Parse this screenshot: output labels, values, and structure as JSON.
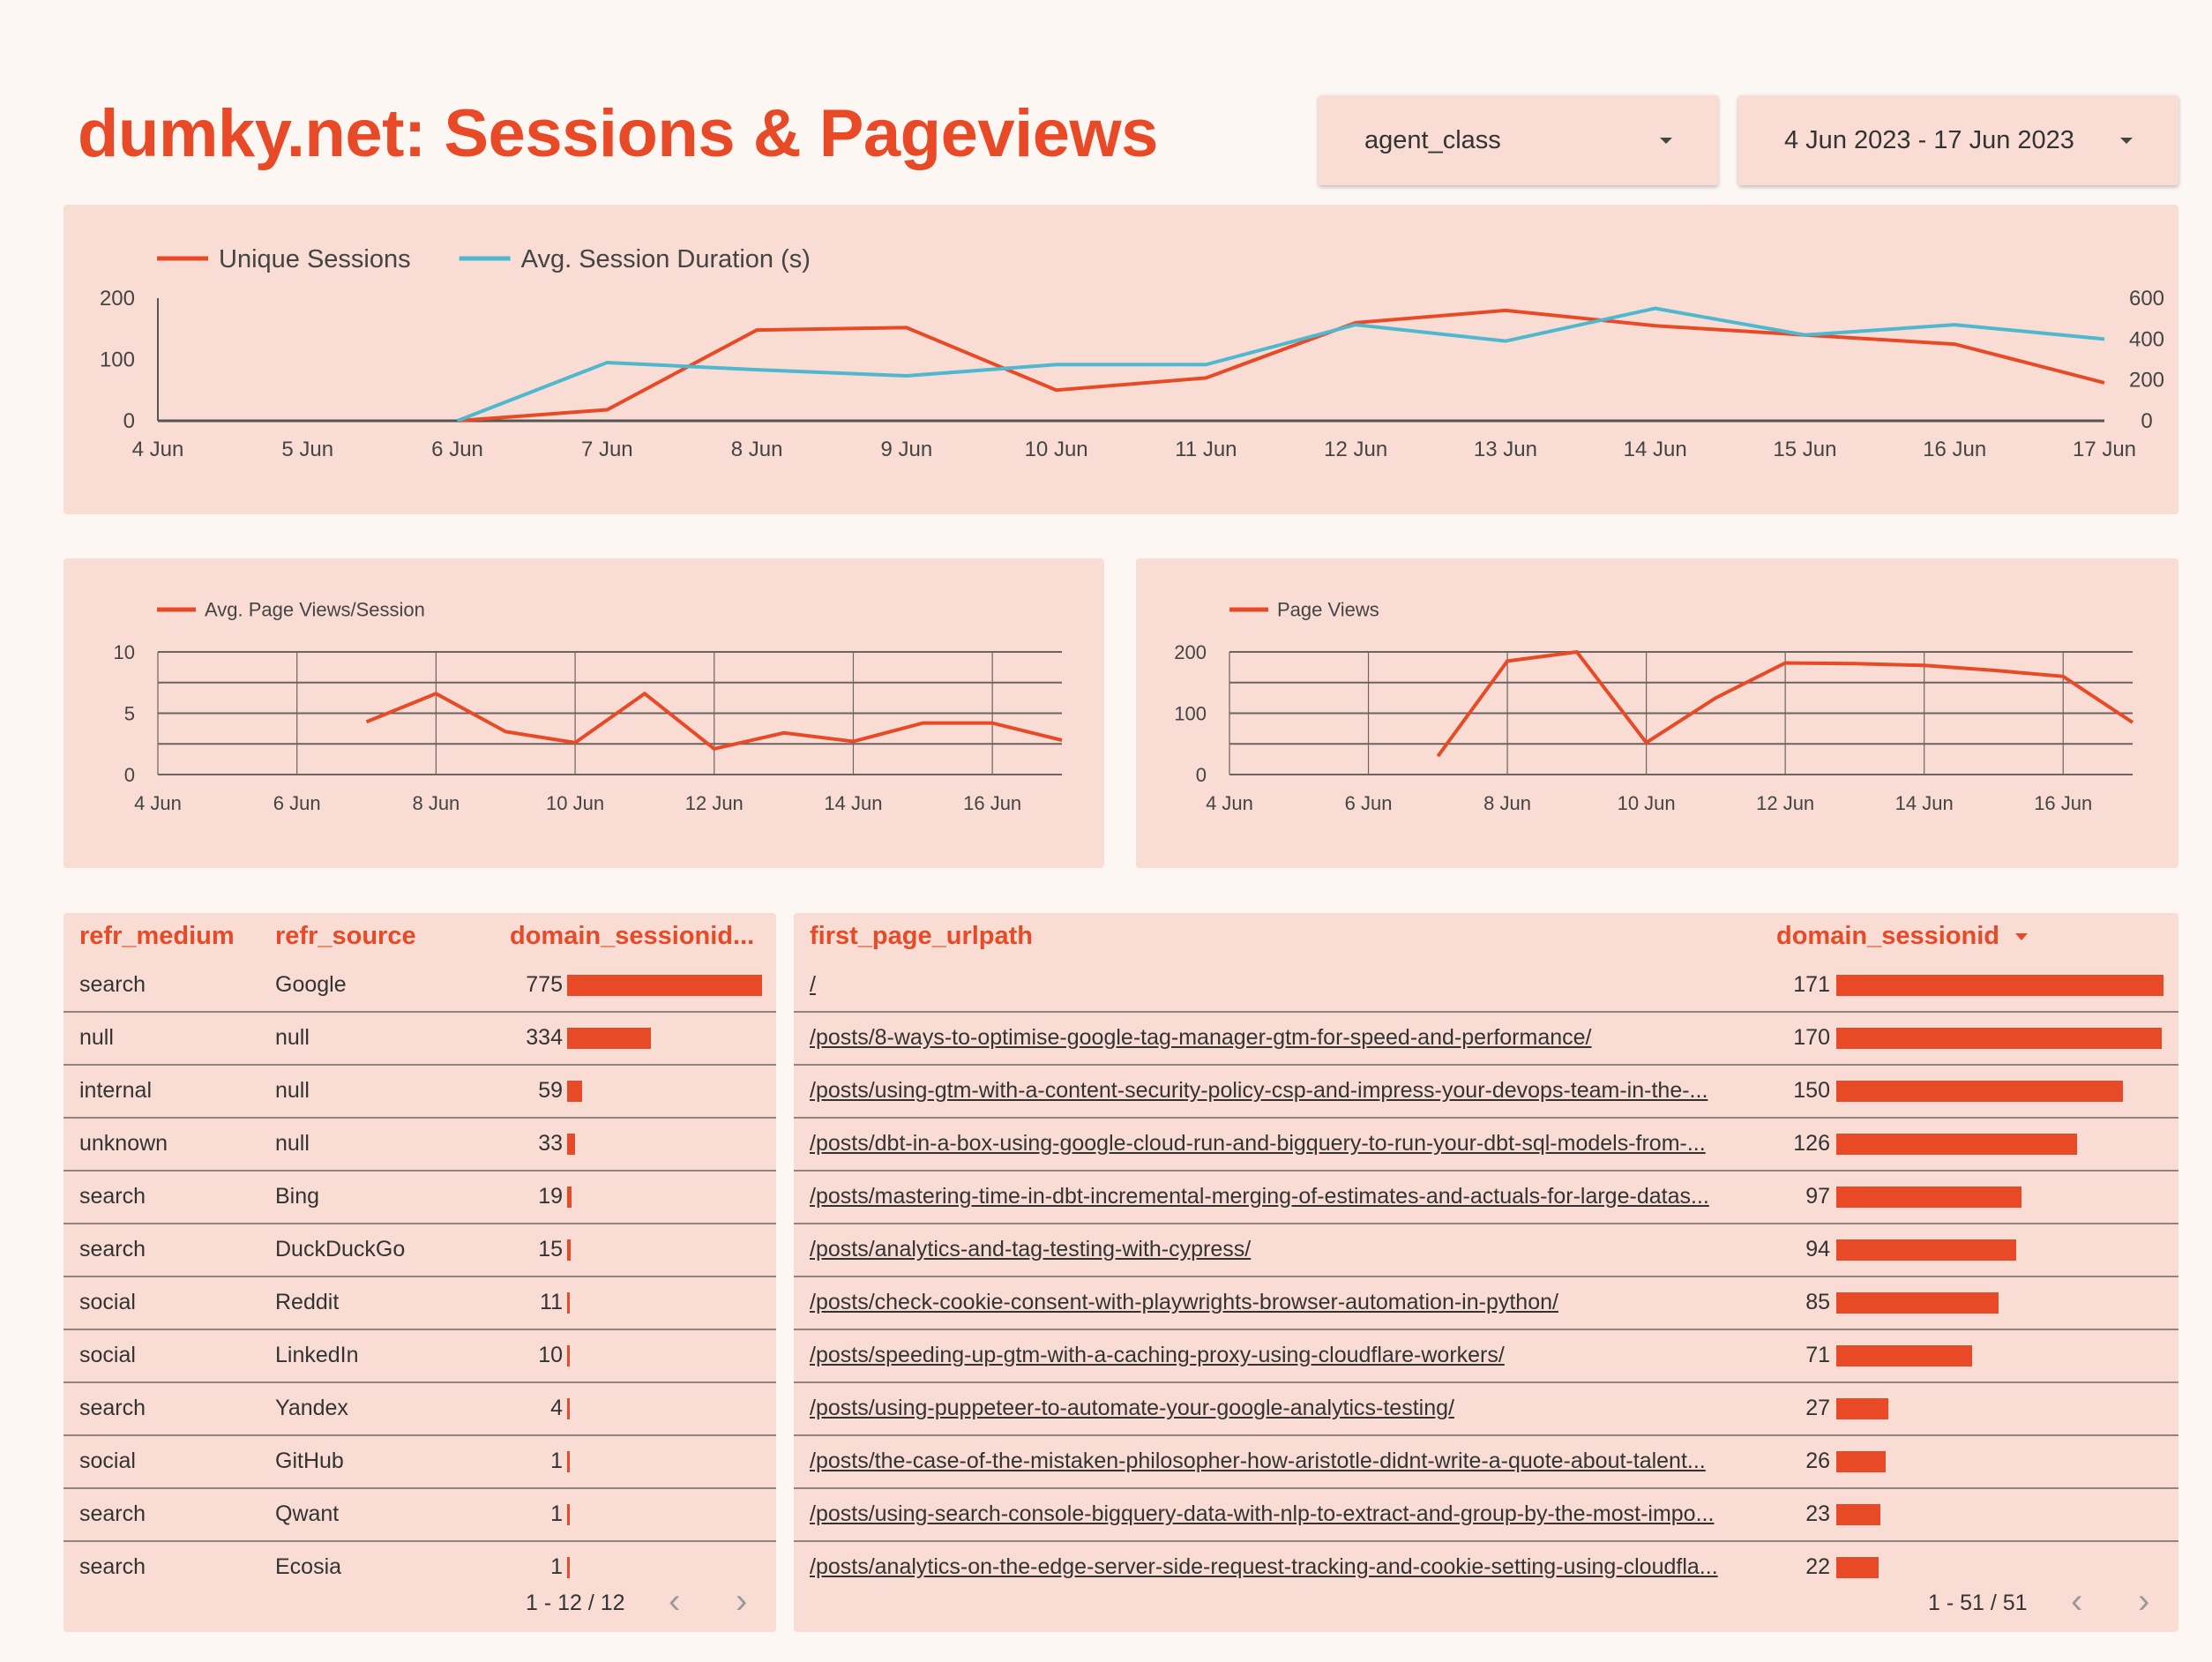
{
  "header": {
    "title": "dumky.net: Sessions & Pageviews"
  },
  "filters": {
    "agent_class": {
      "label": "agent_class",
      "icon": "caret-down-icon"
    },
    "date_range": {
      "label": "4 Jun 2023 - 17 Jun 2023",
      "icon": "caret-down-icon"
    }
  },
  "colors": {
    "accent": "#e84a27",
    "secondary": "#4fb8cf",
    "panel": "#f9ddd5",
    "background": "#fdf7f3"
  },
  "chart_data": [
    {
      "type": "line",
      "title": "",
      "x": [
        "4 Jun",
        "5 Jun",
        "6 Jun",
        "7 Jun",
        "8 Jun",
        "9 Jun",
        "10 Jun",
        "11 Jun",
        "12 Jun",
        "13 Jun",
        "14 Jun",
        "15 Jun",
        "16 Jun",
        "17 Jun"
      ],
      "series": [
        {
          "name": "Unique Sessions",
          "axis": "left",
          "color": "#e84a27",
          "values": [
            null,
            null,
            0,
            18,
            148,
            152,
            50,
            70,
            160,
            180,
            155,
            140,
            125,
            62
          ]
        },
        {
          "name": "Avg. Session Duration (s)",
          "axis": "right",
          "color": "#4fb8cf",
          "values": [
            null,
            null,
            0,
            285,
            250,
            220,
            275,
            275,
            470,
            390,
            550,
            420,
            470,
            400
          ]
        }
      ],
      "y_left": {
        "ticks": [
          0,
          100,
          200
        ],
        "range": [
          0,
          200
        ]
      },
      "y_right": {
        "ticks": [
          0,
          200,
          400,
          600
        ],
        "range": [
          0,
          600
        ]
      },
      "x_ticks": [
        "4 Jun",
        "5 Jun",
        "6 Jun",
        "7 Jun",
        "8 Jun",
        "9 Jun",
        "10 Jun",
        "11 Jun",
        "12 Jun",
        "13 Jun",
        "14 Jun",
        "15 Jun",
        "16 Jun",
        "17 Jun"
      ],
      "legend": "top-left",
      "grid": false
    },
    {
      "type": "line",
      "x": [
        "4 Jun",
        "5 Jun",
        "6 Jun",
        "7 Jun",
        "8 Jun",
        "9 Jun",
        "10 Jun",
        "11 Jun",
        "12 Jun",
        "13 Jun",
        "14 Jun",
        "15 Jun",
        "16 Jun",
        "17 Jun"
      ],
      "series": [
        {
          "name": "Avg. Page Views/Session",
          "color": "#e84a27",
          "values": [
            null,
            null,
            null,
            4.3,
            6.6,
            3.5,
            2.6,
            6.6,
            2.1,
            3.4,
            2.7,
            4.2,
            4.2,
            2.8
          ]
        }
      ],
      "y_left": {
        "ticks": [
          0,
          5,
          10
        ],
        "range": [
          0,
          10
        ]
      },
      "x_ticks": [
        "4 Jun",
        "6 Jun",
        "8 Jun",
        "10 Jun",
        "12 Jun",
        "14 Jun",
        "16 Jun"
      ],
      "legend": "top-left",
      "grid": true
    },
    {
      "type": "line",
      "x": [
        "4 Jun",
        "5 Jun",
        "6 Jun",
        "7 Jun",
        "8 Jun",
        "9 Jun",
        "10 Jun",
        "11 Jun",
        "12 Jun",
        "13 Jun",
        "14 Jun",
        "15 Jun",
        "16 Jun",
        "17 Jun"
      ],
      "series": [
        {
          "name": "Page Views",
          "color": "#e84a27",
          "values": [
            null,
            null,
            null,
            30,
            185,
            200,
            52,
            125,
            182,
            181,
            178,
            170,
            160,
            85
          ]
        }
      ],
      "y_left": {
        "ticks": [
          0,
          100,
          200
        ],
        "range": [
          0,
          200
        ]
      },
      "x_ticks": [
        "4 Jun",
        "6 Jun",
        "8 Jun",
        "10 Jun",
        "12 Jun",
        "14 Jun",
        "16 Jun"
      ],
      "legend": "top-left",
      "grid": true
    }
  ],
  "referrer_table": {
    "columns": [
      "refr_medium",
      "refr_source",
      "domain_sessionid..."
    ],
    "rows": [
      {
        "medium": "search",
        "source": "Google",
        "count": 775
      },
      {
        "medium": "null",
        "source": "null",
        "count": 334
      },
      {
        "medium": "internal",
        "source": "null",
        "count": 59
      },
      {
        "medium": "unknown",
        "source": "null",
        "count": 33
      },
      {
        "medium": "search",
        "source": "Bing",
        "count": 19
      },
      {
        "medium": "search",
        "source": "DuckDuckGo",
        "count": 15
      },
      {
        "medium": "social",
        "source": "Reddit",
        "count": 11
      },
      {
        "medium": "social",
        "source": "LinkedIn",
        "count": 10
      },
      {
        "medium": "search",
        "source": "Yandex",
        "count": 4
      },
      {
        "medium": "social",
        "source": "GitHub",
        "count": 1
      },
      {
        "medium": "search",
        "source": "Qwant",
        "count": 1
      },
      {
        "medium": "search",
        "source": "Ecosia",
        "count": 1
      }
    ],
    "pagination": "1 - 12 / 12"
  },
  "landing_table": {
    "columns": [
      "first_page_urlpath",
      "domain_sessionid"
    ],
    "sort_icon": "sort-desc-icon",
    "rows": [
      {
        "url": "/",
        "count": 171
      },
      {
        "url": "/posts/8-ways-to-optimise-google-tag-manager-gtm-for-speed-and-performance/",
        "count": 170
      },
      {
        "url": "/posts/using-gtm-with-a-content-security-policy-csp-and-impress-your-devops-team-in-the-...",
        "count": 150
      },
      {
        "url": "/posts/dbt-in-a-box-using-google-cloud-run-and-bigquery-to-run-your-dbt-sql-models-from-...",
        "count": 126
      },
      {
        "url": "/posts/mastering-time-in-dbt-incremental-merging-of-estimates-and-actuals-for-large-datas...",
        "count": 97
      },
      {
        "url": "/posts/analytics-and-tag-testing-with-cypress/",
        "count": 94
      },
      {
        "url": "/posts/check-cookie-consent-with-playwrights-browser-automation-in-python/",
        "count": 85
      },
      {
        "url": "/posts/speeding-up-gtm-with-a-caching-proxy-using-cloudflare-workers/",
        "count": 71
      },
      {
        "url": "/posts/using-puppeteer-to-automate-your-google-analytics-testing/",
        "count": 27
      },
      {
        "url": "/posts/the-case-of-the-mistaken-philosopher-how-aristotle-didnt-write-a-quote-about-talent...",
        "count": 26
      },
      {
        "url": "/posts/using-search-console-bigquery-data-with-nlp-to-extract-and-group-by-the-most-impo...",
        "count": 23
      },
      {
        "url": "/posts/analytics-on-the-edge-server-side-request-tracking-and-cookie-setting-using-cloudfla...",
        "count": 22
      }
    ],
    "pagination": "1 - 51 / 51"
  },
  "pager_icons": {
    "prev": "‹",
    "next": "›"
  }
}
